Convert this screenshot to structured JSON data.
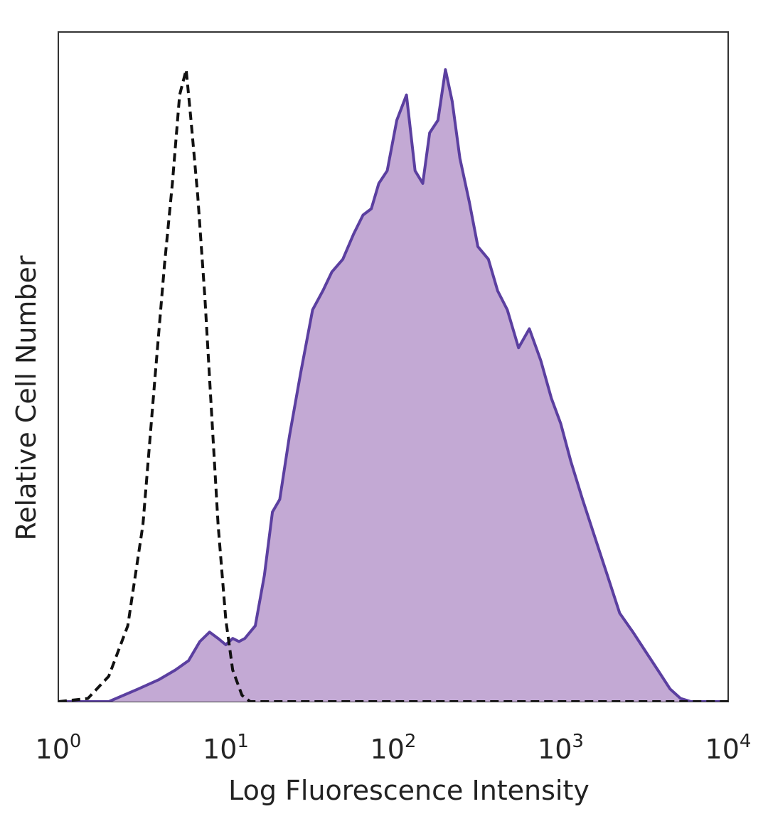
{
  "chart_data": {
    "type": "area",
    "title": "",
    "xlabel": "Log Fluorescence Intensity",
    "ylabel": "Relative Cell Number",
    "x_scale": "log",
    "xlim": [
      1,
      10000
    ],
    "ylim": [
      0,
      1
    ],
    "grid": false,
    "legend": "none",
    "x_ticks": [
      {
        "value": 1,
        "base": "10",
        "exp": "0"
      },
      {
        "value": 10,
        "base": "10",
        "exp": "1"
      },
      {
        "value": 100,
        "base": "10",
        "exp": "2"
      },
      {
        "value": 1000,
        "base": "10",
        "exp": "3"
      },
      {
        "value": 10000,
        "base": "10",
        "exp": "4"
      }
    ],
    "series": [
      {
        "style": "dashed-line",
        "color": "#111111",
        "points": [
          [
            1.0,
            0.0
          ],
          [
            1.5,
            0.005
          ],
          [
            2.0,
            0.04
          ],
          [
            2.6,
            0.12
          ],
          [
            3.2,
            0.28
          ],
          [
            3.8,
            0.52
          ],
          [
            4.3,
            0.69
          ],
          [
            4.8,
            0.82
          ],
          [
            5.3,
            0.96
          ],
          [
            5.8,
            1.0
          ],
          [
            6.2,
            0.92
          ],
          [
            6.8,
            0.8
          ],
          [
            7.5,
            0.64
          ],
          [
            8.3,
            0.44
          ],
          [
            9.0,
            0.28
          ],
          [
            10.0,
            0.13
          ],
          [
            11.0,
            0.05
          ],
          [
            12.5,
            0.01
          ],
          [
            14.0,
            0.0
          ],
          [
            10000,
            0.0
          ]
        ]
      },
      {
        "style": "filled-area",
        "color": "#5b3fa0",
        "fill": "#c3a9d4",
        "points": [
          [
            1.0,
            0.0
          ],
          [
            2.0,
            0.0
          ],
          [
            3.0,
            0.02
          ],
          [
            4.0,
            0.035
          ],
          [
            5.0,
            0.05
          ],
          [
            6.0,
            0.065
          ],
          [
            7.0,
            0.095
          ],
          [
            8.0,
            0.11
          ],
          [
            9.0,
            0.1
          ],
          [
            10.0,
            0.09
          ],
          [
            11.0,
            0.1
          ],
          [
            12.0,
            0.095
          ],
          [
            13.0,
            0.1
          ],
          [
            15.0,
            0.12
          ],
          [
            17.0,
            0.2
          ],
          [
            19.0,
            0.3
          ],
          [
            21.0,
            0.32
          ],
          [
            24.0,
            0.42
          ],
          [
            28.0,
            0.52
          ],
          [
            33.0,
            0.62
          ],
          [
            38.0,
            0.65
          ],
          [
            43.0,
            0.68
          ],
          [
            50.0,
            0.7
          ],
          [
            58.0,
            0.74
          ],
          [
            66.0,
            0.77
          ],
          [
            74.0,
            0.78
          ],
          [
            82.0,
            0.82
          ],
          [
            92.0,
            0.84
          ],
          [
            105.0,
            0.92
          ],
          [
            120.0,
            0.96
          ],
          [
            135.0,
            0.84
          ],
          [
            150.0,
            0.82
          ],
          [
            165.0,
            0.9
          ],
          [
            185.0,
            0.92
          ],
          [
            205.0,
            1.0
          ],
          [
            225.0,
            0.95
          ],
          [
            250.0,
            0.86
          ],
          [
            285.0,
            0.79
          ],
          [
            320.0,
            0.72
          ],
          [
            370.0,
            0.7
          ],
          [
            420.0,
            0.65
          ],
          [
            480.0,
            0.62
          ],
          [
            560.0,
            0.56
          ],
          [
            650.0,
            0.59
          ],
          [
            760.0,
            0.54
          ],
          [
            880.0,
            0.48
          ],
          [
            1000.0,
            0.44
          ],
          [
            1150.0,
            0.38
          ],
          [
            1350.0,
            0.32
          ],
          [
            1600.0,
            0.26
          ],
          [
            1900.0,
            0.2
          ],
          [
            2250.0,
            0.14
          ],
          [
            2700.0,
            0.11
          ],
          [
            3200.0,
            0.08
          ],
          [
            3800.0,
            0.05
          ],
          [
            4500.0,
            0.02
          ],
          [
            5200.0,
            0.005
          ],
          [
            6000.0,
            0.0
          ],
          [
            10000,
            0.0
          ]
        ]
      }
    ]
  }
}
